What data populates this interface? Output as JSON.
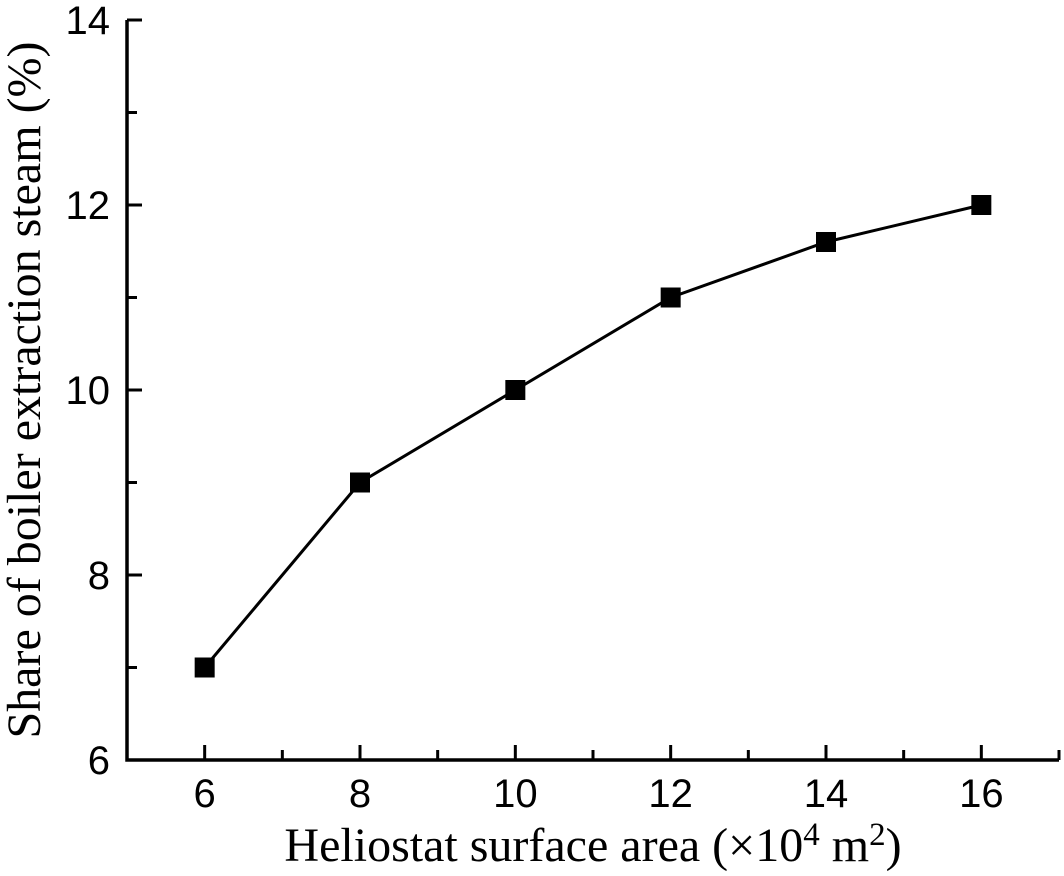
{
  "chart_data": {
    "type": "line",
    "title": "",
    "xlabel": "Heliostat surface area (×10⁴ m²)",
    "xlabel_parts": [
      {
        "t": "Heliostat surface area (×10",
        "sup": false
      },
      {
        "t": "4",
        "sup": true
      },
      {
        "t": " m",
        "sup": false
      },
      {
        "t": "2",
        "sup": true
      },
      {
        "t": ")",
        "sup": false
      }
    ],
    "ylabel": "Share of boiler extraction steam (%)",
    "x": [
      6,
      8,
      10,
      12,
      14,
      16
    ],
    "values": [
      7,
      9,
      10,
      11,
      11.6,
      12
    ],
    "xlim": [
      5,
      17
    ],
    "ylim": [
      6,
      14
    ],
    "xticks": [
      6,
      8,
      10,
      12,
      14,
      16
    ],
    "yticks": [
      6,
      8,
      10,
      12,
      14
    ],
    "xminorticks": [
      7,
      9,
      11,
      13,
      15,
      17
    ],
    "yminorticks": [
      7,
      9,
      11,
      13
    ],
    "grid": false,
    "legend": "none",
    "marker": "filled-square",
    "colors": {
      "line": "#000000",
      "marker": "#000000",
      "axis": "#000000",
      "text": "#000000",
      "background": "#ffffff"
    }
  }
}
